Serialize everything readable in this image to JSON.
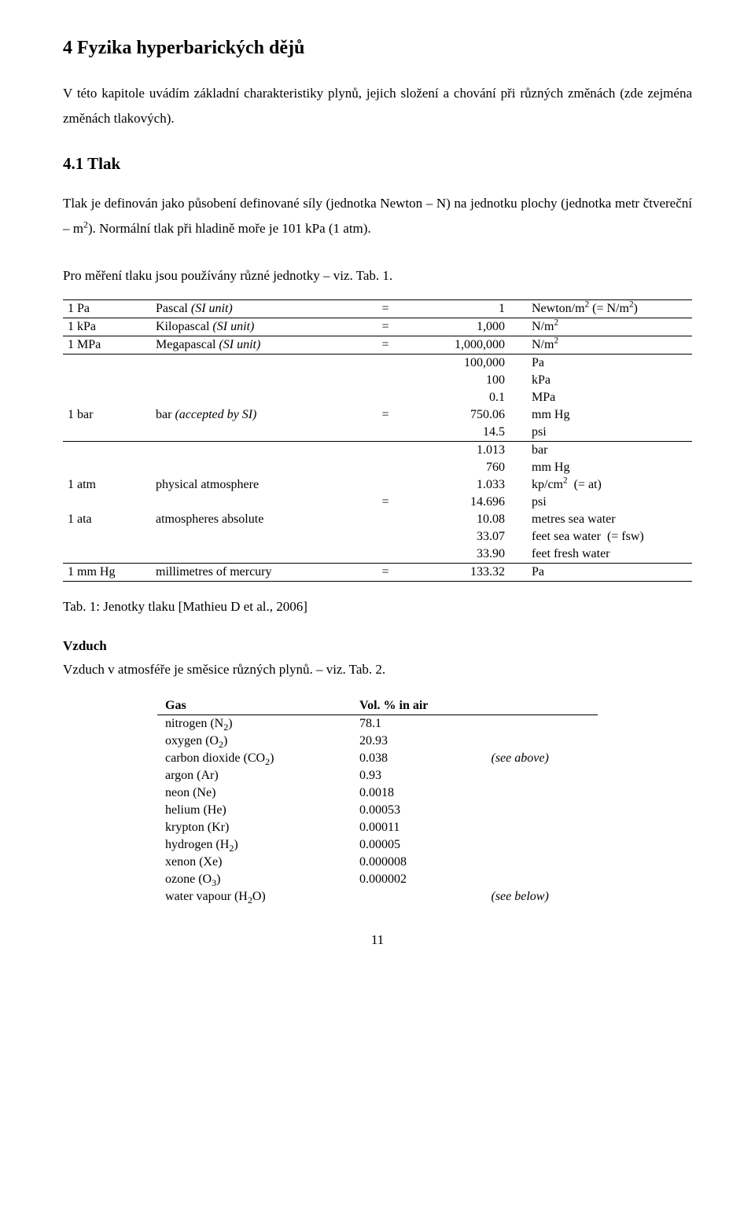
{
  "section_title": "4 Fyzika hyperbarických dějů",
  "intro_paragraph": "V této kapitole uvádím základní charakteristiky plynů, jejich složení a chování při různých změnách (zde zejména změnách tlakových).",
  "subsection_title": "4.1 Tlak",
  "tlak_para_1_a": "Tlak je definován jako působení definované síly (jednotka Newton – N) na jednotku plochy (jednotka metr čtvereční – m",
  "tlak_para_1_sup": "2",
  "tlak_para_1_b": "). Normální tlak při hladině moře je 101 kPa (1 atm).",
  "tlak_para_2": "Pro měření tlaku jsou používány různé jednotky – viz. Tab. 1.",
  "units_table": {
    "groups": [
      {
        "rows": [
          {
            "sym": "1 Pa",
            "name": "Pascal ",
            "name_italic": "(SI unit)",
            "eq": "=",
            "val": "1",
            "unit_html": "Newton/m<span class=\"sup\">2</span> (= N/m<span class=\"sup\">2</span>)"
          }
        ]
      },
      {
        "rows": [
          {
            "sym": "1 kPa",
            "name": "Kilopascal ",
            "name_italic": "(SI unit)",
            "eq": "=",
            "val": "1,000",
            "unit_html": "N/m<span class=\"sup\">2</span>"
          }
        ]
      },
      {
        "rows": [
          {
            "sym": "1 MPa",
            "name": "Megapascal ",
            "name_italic": "(SI unit)",
            "eq": "=",
            "val": "1,000,000",
            "unit_html": "N/m<span class=\"sup\">2</span>"
          }
        ]
      },
      {
        "rows": [
          {
            "sym": "",
            "name": "",
            "eq": "",
            "val": "100,000",
            "unit_html": "Pa"
          },
          {
            "sym": "",
            "name": "",
            "eq": "",
            "val": "100",
            "unit_html": "kPa"
          },
          {
            "sym": "",
            "name": "",
            "eq": "",
            "val": "0.1",
            "unit_html": "MPa"
          },
          {
            "sym": "1 bar",
            "name": "bar ",
            "name_italic": "(accepted by SI)",
            "eq": "=",
            "val": "750.06",
            "unit_html": "mm Hg"
          },
          {
            "sym": "",
            "name": "",
            "eq": "",
            "val": "14.5",
            "unit_html": "psi"
          }
        ]
      },
      {
        "rows": [
          {
            "sym": "",
            "name": "",
            "eq": "",
            "val": "1.013",
            "unit_html": "bar"
          },
          {
            "sym": "",
            "name": "",
            "eq": "",
            "val": "760",
            "unit_html": "mm Hg"
          },
          {
            "sym": "1 atm",
            "name": "physical atmosphere",
            "eq": "",
            "val": "1.033",
            "unit_html": "kp/cm<span class=\"sup\">2</span>&nbsp;&nbsp;(= at)"
          },
          {
            "sym": "",
            "name": "",
            "eq": "=",
            "val": "14.696",
            "unit_html": "psi"
          },
          {
            "sym": "1 ata",
            "name": "atmospheres absolute",
            "eq": "",
            "val": "10.08",
            "unit_html": "metres sea water"
          },
          {
            "sym": "",
            "name": "",
            "eq": "",
            "val": "33.07",
            "unit_html": "feet sea water&nbsp;&nbsp;(= fsw)"
          },
          {
            "sym": "",
            "name": "",
            "eq": "",
            "val": "33.90",
            "unit_html": "feet fresh water"
          }
        ]
      },
      {
        "rows": [
          {
            "sym": "1 mm Hg",
            "name": "millimetres of mercury",
            "eq": "=",
            "val": "133.32",
            "unit_html": "Pa"
          }
        ]
      }
    ]
  },
  "table1_caption": "Tab. 1: Jenotky tlaku [Mathieu D et al., 2006]",
  "vzduch_head": "Vzduch",
  "vzduch_line": "Vzduch v atmosféře je směsice různých plynů. – viz. Tab. 2.",
  "gas_table": {
    "head_gas": "Gas",
    "head_vol": "Vol. % in air",
    "rows": [
      {
        "gas_html": "nitrogen (N<span class=\"sub\">2</span>)",
        "vol": "78.1",
        "note": ""
      },
      {
        "gas_html": "oxygen (O<span class=\"sub\">2</span>)",
        "vol": "20.93",
        "note": ""
      },
      {
        "gas_html": "carbon dioxide (CO<span class=\"sub\">2</span>)",
        "vol": "0.038",
        "note": "(see above)"
      },
      {
        "gas_html": "argon (Ar)",
        "vol": "0.93",
        "note": ""
      },
      {
        "gas_html": "neon (Ne)",
        "vol": "0.0018",
        "note": ""
      },
      {
        "gas_html": "helium (He)",
        "vol": "0.00053",
        "note": ""
      },
      {
        "gas_html": "krypton (Kr)",
        "vol": "0.00011",
        "note": ""
      },
      {
        "gas_html": "hydrogen (H<span class=\"sub\">2</span>)",
        "vol": "0.00005",
        "note": ""
      },
      {
        "gas_html": "xenon (Xe)",
        "vol": "0.000008",
        "note": ""
      },
      {
        "gas_html": "ozone (O<span class=\"sub\">3</span>)",
        "vol": "0.000002",
        "note": ""
      },
      {
        "gas_html": "water vapour (H<span class=\"sub\">2</span>O)",
        "vol": "",
        "note": "(see below)"
      }
    ]
  },
  "page_number": "11",
  "colors": {
    "text": "#000000",
    "bg": "#ffffff",
    "rule": "#000000"
  }
}
